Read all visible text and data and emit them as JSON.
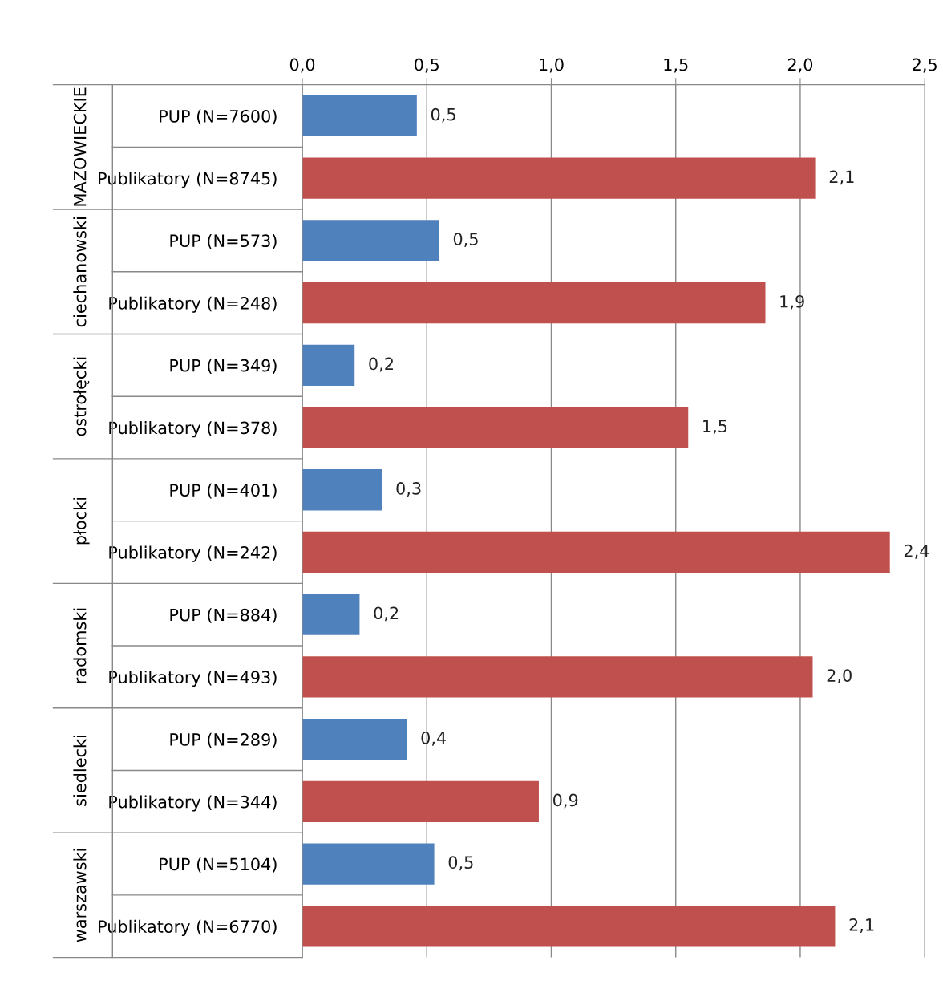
{
  "chart_data": {
    "type": "bar",
    "orientation": "horizontal",
    "categories": [
      "PUP (N=7600)",
      "Publikatory (N=8745)",
      "PUP (N=573)",
      "Publikatory (N=248)",
      "PUP (N=349)",
      "Publikatory (N=378)",
      "PUP (N=401)",
      "Publikatory (N=242)",
      "PUP (N=884)",
      "Publikatory (N=493)",
      "PUP (N=289)",
      "Publikatory (N=344)",
      "PUP (N=5104)",
      "Publikatory (N=6770)"
    ],
    "values": [
      0.46,
      2.06,
      0.55,
      1.86,
      0.21,
      1.55,
      0.32,
      2.36,
      0.23,
      2.05,
      0.42,
      0.95,
      0.53,
      2.14
    ],
    "value_labels": [
      "0,5",
      "2,1",
      "0,5",
      "1,9",
      "0,2",
      "1,5",
      "0,3",
      "2,4",
      "0,2",
      "2,0",
      "0,4",
      "0,9",
      "0,5",
      "2,1"
    ],
    "colors": [
      "#4f81bd",
      "#c0504d",
      "#4f81bd",
      "#c0504d",
      "#4f81bd",
      "#c0504d",
      "#4f81bd",
      "#c0504d",
      "#4f81bd",
      "#c0504d",
      "#4f81bd",
      "#c0504d",
      "#4f81bd",
      "#c0504d"
    ],
    "annotations": [
      "MAZOWIECKIE",
      "ciechanowski",
      "ostrołęcki",
      "płocki",
      "radomski",
      "siedlecki",
      "warszawski"
    ],
    "xlim": [
      0,
      2.5
    ],
    "xticks": [
      {
        "value": 0,
        "label": "0,0"
      },
      {
        "value": 0.5,
        "label": "0,5"
      },
      {
        "value": 1.0,
        "label": "1,0"
      },
      {
        "value": 1.5,
        "label": "1,5"
      },
      {
        "value": 2.0,
        "label": "2,0"
      },
      {
        "value": 2.5,
        "label": "2,5"
      }
    ],
    "grid": "x",
    "legend": false
  }
}
